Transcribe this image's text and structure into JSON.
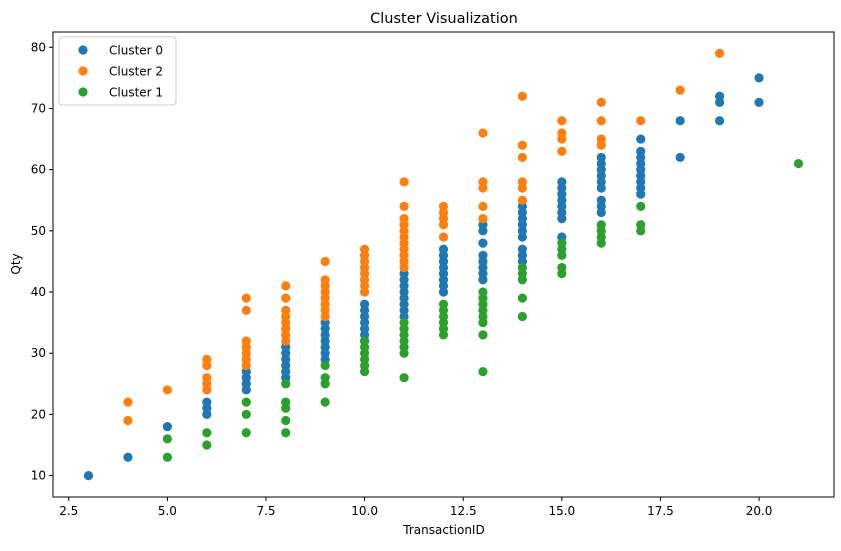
{
  "chart_data": {
    "type": "scatter",
    "title": "Cluster Visualization",
    "xlabel": "TransactionID",
    "ylabel": "Qty",
    "xlim": [
      2.1,
      21.9
    ],
    "ylim": [
      6.5,
      82.5
    ],
    "xticks": [
      2.5,
      5.0,
      7.5,
      10.0,
      12.5,
      15.0,
      17.5,
      20.0
    ],
    "xtick_labels": [
      "2.5",
      "5.0",
      "7.5",
      "10.0",
      "12.5",
      "15.0",
      "17.5",
      "20.0"
    ],
    "yticks": [
      10,
      20,
      30,
      40,
      50,
      60,
      70,
      80
    ],
    "ytick_labels": [
      "10",
      "20",
      "30",
      "40",
      "50",
      "60",
      "70",
      "80"
    ],
    "grid": false,
    "legend_position": "top-left",
    "series": [
      {
        "name": "Cluster 0",
        "color": "#1f77b4",
        "points": [
          [
            3,
            10
          ],
          [
            4,
            13
          ],
          [
            5,
            18
          ],
          [
            6,
            20
          ],
          [
            6,
            21
          ],
          [
            6,
            22
          ],
          [
            7,
            24
          ],
          [
            7,
            25
          ],
          [
            7,
            26
          ],
          [
            7,
            27
          ],
          [
            8,
            26
          ],
          [
            8,
            27
          ],
          [
            8,
            28
          ],
          [
            8,
            29
          ],
          [
            8,
            30
          ],
          [
            8,
            31
          ],
          [
            9,
            29
          ],
          [
            9,
            30
          ],
          [
            9,
            31
          ],
          [
            9,
            32
          ],
          [
            9,
            33
          ],
          [
            9,
            34
          ],
          [
            9,
            35
          ],
          [
            10,
            32
          ],
          [
            10,
            33
          ],
          [
            10,
            34
          ],
          [
            10,
            35
          ],
          [
            10,
            36
          ],
          [
            10,
            37
          ],
          [
            10,
            38
          ],
          [
            11,
            36
          ],
          [
            11,
            37
          ],
          [
            11,
            38
          ],
          [
            11,
            39
          ],
          [
            11,
            40
          ],
          [
            11,
            41
          ],
          [
            11,
            42
          ],
          [
            11,
            43
          ],
          [
            12,
            40
          ],
          [
            12,
            41
          ],
          [
            12,
            42
          ],
          [
            12,
            43
          ],
          [
            12,
            44
          ],
          [
            12,
            45
          ],
          [
            12,
            46
          ],
          [
            12,
            47
          ],
          [
            13,
            42
          ],
          [
            13,
            43
          ],
          [
            13,
            44
          ],
          [
            13,
            45
          ],
          [
            13,
            46
          ],
          [
            13,
            48
          ],
          [
            13,
            50
          ],
          [
            13,
            51
          ],
          [
            14,
            45
          ],
          [
            14,
            46
          ],
          [
            14,
            47
          ],
          [
            14,
            49
          ],
          [
            14,
            50
          ],
          [
            14,
            51
          ],
          [
            14,
            52
          ],
          [
            14,
            53
          ],
          [
            14,
            54
          ],
          [
            15,
            49
          ],
          [
            15,
            52
          ],
          [
            15,
            53
          ],
          [
            15,
            54
          ],
          [
            15,
            55
          ],
          [
            15,
            56
          ],
          [
            15,
            57
          ],
          [
            15,
            58
          ],
          [
            16,
            53
          ],
          [
            16,
            54
          ],
          [
            16,
            55
          ],
          [
            16,
            57
          ],
          [
            16,
            58
          ],
          [
            16,
            59
          ],
          [
            16,
            60
          ],
          [
            16,
            61
          ],
          [
            16,
            62
          ],
          [
            17,
            56
          ],
          [
            17,
            57
          ],
          [
            17,
            58
          ],
          [
            17,
            59
          ],
          [
            17,
            60
          ],
          [
            17,
            61
          ],
          [
            17,
            62
          ],
          [
            17,
            63
          ],
          [
            17,
            65
          ],
          [
            18,
            62
          ],
          [
            18,
            68
          ],
          [
            19,
            68
          ],
          [
            19,
            71
          ],
          [
            19,
            72
          ],
          [
            20,
            71
          ],
          [
            20,
            75
          ]
        ]
      },
      {
        "name": "Cluster 2",
        "color": "#ff7f0e",
        "points": [
          [
            4,
            19
          ],
          [
            4,
            22
          ],
          [
            5,
            24
          ],
          [
            6,
            24
          ],
          [
            6,
            25
          ],
          [
            6,
            26
          ],
          [
            6,
            28
          ],
          [
            6,
            29
          ],
          [
            7,
            28
          ],
          [
            7,
            29
          ],
          [
            7,
            30
          ],
          [
            7,
            31
          ],
          [
            7,
            32
          ],
          [
            7,
            37
          ],
          [
            7,
            39
          ],
          [
            8,
            32
          ],
          [
            8,
            33
          ],
          [
            8,
            34
          ],
          [
            8,
            35
          ],
          [
            8,
            36
          ],
          [
            8,
            37
          ],
          [
            8,
            39
          ],
          [
            8,
            41
          ],
          [
            9,
            36
          ],
          [
            9,
            37
          ],
          [
            9,
            38
          ],
          [
            9,
            39
          ],
          [
            9,
            40
          ],
          [
            9,
            41
          ],
          [
            9,
            42
          ],
          [
            9,
            45
          ],
          [
            10,
            40
          ],
          [
            10,
            41
          ],
          [
            10,
            42
          ],
          [
            10,
            43
          ],
          [
            10,
            44
          ],
          [
            10,
            45
          ],
          [
            10,
            46
          ],
          [
            10,
            47
          ],
          [
            11,
            44
          ],
          [
            11,
            45
          ],
          [
            11,
            46
          ],
          [
            11,
            47
          ],
          [
            11,
            48
          ],
          [
            11,
            49
          ],
          [
            11,
            50
          ],
          [
            11,
            51
          ],
          [
            11,
            52
          ],
          [
            11,
            54
          ],
          [
            11,
            58
          ],
          [
            12,
            49
          ],
          [
            12,
            51
          ],
          [
            12,
            52
          ],
          [
            12,
            53
          ],
          [
            12,
            54
          ],
          [
            13,
            52
          ],
          [
            13,
            54
          ],
          [
            13,
            57
          ],
          [
            13,
            58
          ],
          [
            13,
            66
          ],
          [
            14,
            55
          ],
          [
            14,
            57
          ],
          [
            14,
            58
          ],
          [
            14,
            62
          ],
          [
            14,
            64
          ],
          [
            14,
            72
          ],
          [
            15,
            63
          ],
          [
            15,
            65
          ],
          [
            15,
            66
          ],
          [
            15,
            68
          ],
          [
            16,
            64
          ],
          [
            16,
            65
          ],
          [
            16,
            68
          ],
          [
            16,
            71
          ],
          [
            17,
            68
          ],
          [
            18,
            73
          ],
          [
            19,
            79
          ]
        ]
      },
      {
        "name": "Cluster 1",
        "color": "#2ca02c",
        "points": [
          [
            5,
            13
          ],
          [
            5,
            16
          ],
          [
            6,
            15
          ],
          [
            6,
            17
          ],
          [
            7,
            17
          ],
          [
            7,
            20
          ],
          [
            7,
            22
          ],
          [
            8,
            17
          ],
          [
            8,
            19
          ],
          [
            8,
            21
          ],
          [
            8,
            22
          ],
          [
            8,
            25
          ],
          [
            9,
            22
          ],
          [
            9,
            25
          ],
          [
            9,
            26
          ],
          [
            9,
            28
          ],
          [
            10,
            27
          ],
          [
            10,
            28
          ],
          [
            10,
            29
          ],
          [
            10,
            30
          ],
          [
            10,
            31
          ],
          [
            10,
            32
          ],
          [
            11,
            26
          ],
          [
            11,
            30
          ],
          [
            11,
            31
          ],
          [
            11,
            32
          ],
          [
            11,
            33
          ],
          [
            11,
            34
          ],
          [
            11,
            35
          ],
          [
            12,
            33
          ],
          [
            12,
            34
          ],
          [
            12,
            35
          ],
          [
            12,
            36
          ],
          [
            12,
            37
          ],
          [
            12,
            38
          ],
          [
            13,
            27
          ],
          [
            13,
            33
          ],
          [
            13,
            35
          ],
          [
            13,
            36
          ],
          [
            13,
            37
          ],
          [
            13,
            38
          ],
          [
            13,
            39
          ],
          [
            13,
            40
          ],
          [
            14,
            36
          ],
          [
            14,
            39
          ],
          [
            14,
            42
          ],
          [
            14,
            43
          ],
          [
            14,
            44
          ],
          [
            15,
            43
          ],
          [
            15,
            44
          ],
          [
            15,
            46
          ],
          [
            15,
            47
          ],
          [
            15,
            48
          ],
          [
            16,
            48
          ],
          [
            16,
            49
          ],
          [
            16,
            50
          ],
          [
            16,
            51
          ],
          [
            17,
            50
          ],
          [
            17,
            51
          ],
          [
            17,
            54
          ],
          [
            21,
            61
          ]
        ]
      }
    ]
  }
}
